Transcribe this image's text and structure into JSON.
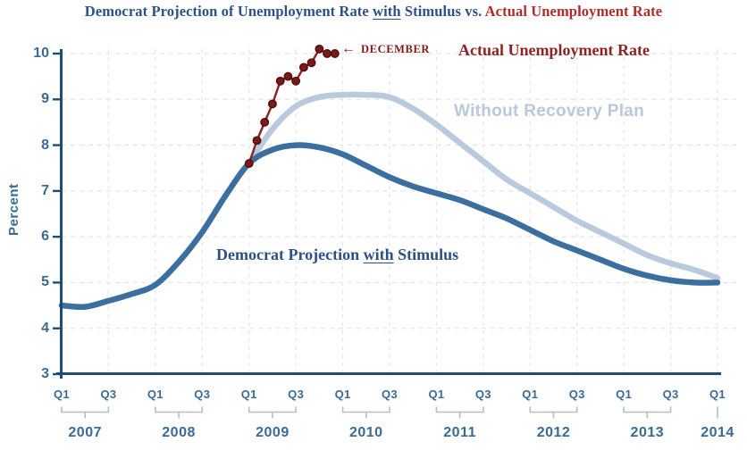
{
  "title": {
    "part1": "Democrat Projection of Unemployment Rate ",
    "underlined": "with",
    "part2": " Stimulus vs. ",
    "part3": "Actual Unemployment Rate"
  },
  "y_axis": {
    "label": "Percent",
    "ticks": [
      10,
      9,
      8,
      7,
      6,
      5,
      4,
      3
    ]
  },
  "x_axis": {
    "q1_label": "Q1",
    "q3_label": "Q3",
    "years": [
      "2007",
      "2008",
      "2009",
      "2010",
      "2011",
      "2012",
      "2013"
    ],
    "last_year": "2014"
  },
  "annotations": {
    "december_arrow": "←",
    "december_text": "DECEMBER",
    "actual_label": "Actual Unemployment Rate",
    "without_label": "Without Recovery Plan",
    "stimulus": {
      "part1": "Democrat Projection ",
      "underlined": "with",
      "part2": " Stimulus"
    }
  },
  "colors": {
    "title_blue": "#2D5186",
    "title_red": "#B02B2B",
    "axis": "#1E4E78",
    "axis_text": "#3A6B96",
    "with_stimulus": "#3B6FA0",
    "without_plan": "#B9CADF",
    "actual": "#8B2121",
    "actual_marker": "#7C1A1A",
    "actual_marker_edge": "#530E0E",
    "grid_h": "#ECE2E2",
    "grid_v": "#DFE7EE",
    "bracket": "#B3BEC9",
    "without_label_color": "#B9C8DA",
    "actual_label_color": "#8D2424",
    "december_color": "#7E1818"
  },
  "chart_data": {
    "type": "line",
    "title": "Democrat Projection of Unemployment Rate with Stimulus vs. Actual Unemployment Rate",
    "ylabel": "Percent",
    "ylim": [
      3,
      10
    ],
    "x_range": [
      "2007 Q1",
      "2014 Q1"
    ],
    "x_tick_interval": "half-year (Q1 and Q3 labeled)",
    "grid": true,
    "series": [
      {
        "name": "Democrat Projection with Stimulus",
        "color": "#3B6FA0",
        "interval": "quarterly",
        "start": "2007 Q1",
        "values": [
          4.5,
          4.47,
          4.6,
          4.75,
          4.95,
          5.45,
          6.1,
          6.9,
          7.6,
          7.9,
          8.0,
          7.95,
          7.8,
          7.55,
          7.3,
          7.1,
          6.95,
          6.8,
          6.6,
          6.4,
          6.15,
          5.9,
          5.7,
          5.5,
          5.3,
          5.15,
          5.05,
          5.0,
          5.0
        ]
      },
      {
        "name": "Without Recovery Plan",
        "color": "#B9CADF",
        "interval": "quarterly",
        "start": "2009 Q1",
        "values": [
          7.6,
          8.35,
          8.85,
          9.05,
          9.1,
          9.1,
          9.05,
          8.8,
          8.45,
          8.05,
          7.65,
          7.25,
          6.95,
          6.65,
          6.35,
          6.1,
          5.85,
          5.6,
          5.42,
          5.28,
          5.1
        ]
      },
      {
        "name": "Actual Unemployment Rate",
        "color": "#8B2121",
        "interval": "monthly",
        "start": "2009 January",
        "end": "2009 December",
        "markers": true,
        "values": [
          7.6,
          8.1,
          8.5,
          8.9,
          9.4,
          9.5,
          9.4,
          9.7,
          9.8,
          10.1,
          10.0,
          10.0
        ]
      }
    ]
  }
}
